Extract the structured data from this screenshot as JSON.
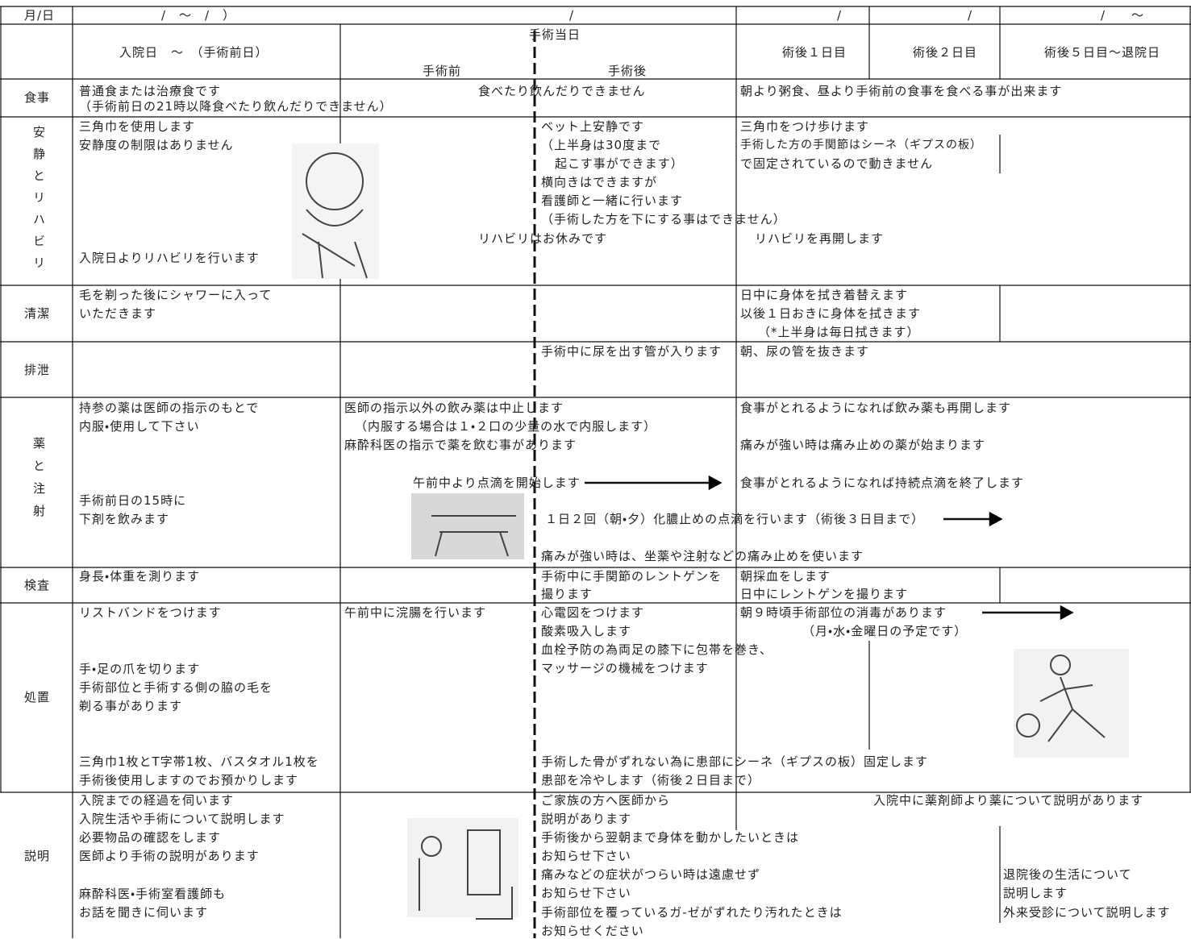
{
  "header": {
    "date_label": "月/日",
    "dates": [
      "/　〜　/　）",
      "/",
      "/",
      "/",
      "/　　〜"
    ],
    "col_titles": [
      "入院日　〜　（手術前日）",
      "手術当日",
      "手術前",
      "手術後",
      "術後１日目",
      "術後２日目",
      "術後５日目〜退院日"
    ]
  },
  "rows": [
    {
      "label": "食事",
      "texts": [
        "普通食または治療食です",
        "（手術前日の21時以降食べたり飲んだりできません）",
        "食べたり飲んだりできません",
        "朝より粥食、昼より手術前の食事を食べる事が出来ます"
      ]
    },
    {
      "label": "安静とリハビリ",
      "texts": [
        "三角巾を使用します",
        "安静度の制限はありません",
        "入院日よりリハビリを行います",
        "ベット上安静です",
        "（上半身は30度まで",
        "起こす事ができます）",
        "横向きはできますが",
        "看護師と一緒に行います",
        "（手術した方を下にする事はできません）",
        "リハビリはお休みです",
        "三角巾をつけ歩けます",
        "手術した方の手関節はシーネ（ギプスの板）",
        "で固定されているので動きません",
        "リハビリを再開します"
      ]
    },
    {
      "label": "清潔",
      "texts": [
        "毛を剃った後にシャワーに入って",
        "いただきます",
        "日中に身体を拭き着替えます",
        "以後１日おきに身体を拭きます",
        "（*上半身は毎日拭きます）"
      ]
    },
    {
      "label": "排泄",
      "texts": [
        "手術中に尿を出す管が入ります",
        "朝、尿の管を抜きます"
      ]
    },
    {
      "label": "薬と注射",
      "texts": [
        "持参の薬は医師の指示のもとで",
        "内服・使用して下さい",
        "手術前日の15時に",
        "下剤を飲みます",
        "医師の指示以外の飲み薬は中止します",
        "（内服する場合は１・２口の少量の水で内服します）",
        "麻酔科医の指示で薬を飲む事があります",
        "午前中より点滴を開始します",
        "１日２回（朝・夕）化膿止めの点滴を行います（術後３日目まで）",
        "痛みが強い時は、坐薬や注射などの痛み止めを使います",
        "食事がとれるようになれば飲み薬も再開します",
        "痛みが強い時は痛み止めの薬が始まります",
        "食事がとれるようになれば持続点滴を終了します"
      ]
    },
    {
      "label": "検査",
      "texts": [
        "身長・体重を測ります",
        "手術中に手関節のレントゲンを",
        "撮ります",
        "朝採血をします",
        "日中にレントゲンを撮ります"
      ]
    },
    {
      "label": "処置",
      "texts": [
        "リストバンドをつけます",
        "手・足の爪を切ります",
        "手術部位と手術する側の脇の毛を",
        "剃る事があります",
        "三角巾1枚とT字帯1枚、バスタオル1枚を",
        "手術後使用しますのでお預かりします",
        "午前中に浣腸を行います",
        "心電図をつけます",
        "酸素吸入します",
        "血栓予防の為両足の膝下に包帯を巻き、",
        "マッサージの機械をつけます",
        "手術した骨がずれない為に患部にシーネ（ギプスの板）固定します",
        "患部を冷やします（術後２日目まで）",
        "朝９時頃手術部位の消毒があります",
        "（月・水・金曜日の予定です）"
      ]
    },
    {
      "label": "説明",
      "texts": [
        "入院までの経過を伺います",
        "入院生活や手術について説明します",
        "必要物品の確認をします",
        "医師より手術の説明があります",
        "麻酔科医・手術室看護師も",
        "お話を聞きに伺います",
        "ご家族の方へ医師から",
        "説明があります",
        "手術後から翌朝まで身体を動かしたいときは",
        "お知らせ下さい",
        "痛みなどの症状がつらい時は遠慮せず",
        "お知らせ下さい",
        "手術部位を覆っているガ-ゼがずれたり汚れたときは",
        "お知らせください",
        "入院中に薬剤師より薬について説明があります",
        "退院後の生活について",
        "説明します",
        "外来受診について説明します"
      ]
    }
  ]
}
